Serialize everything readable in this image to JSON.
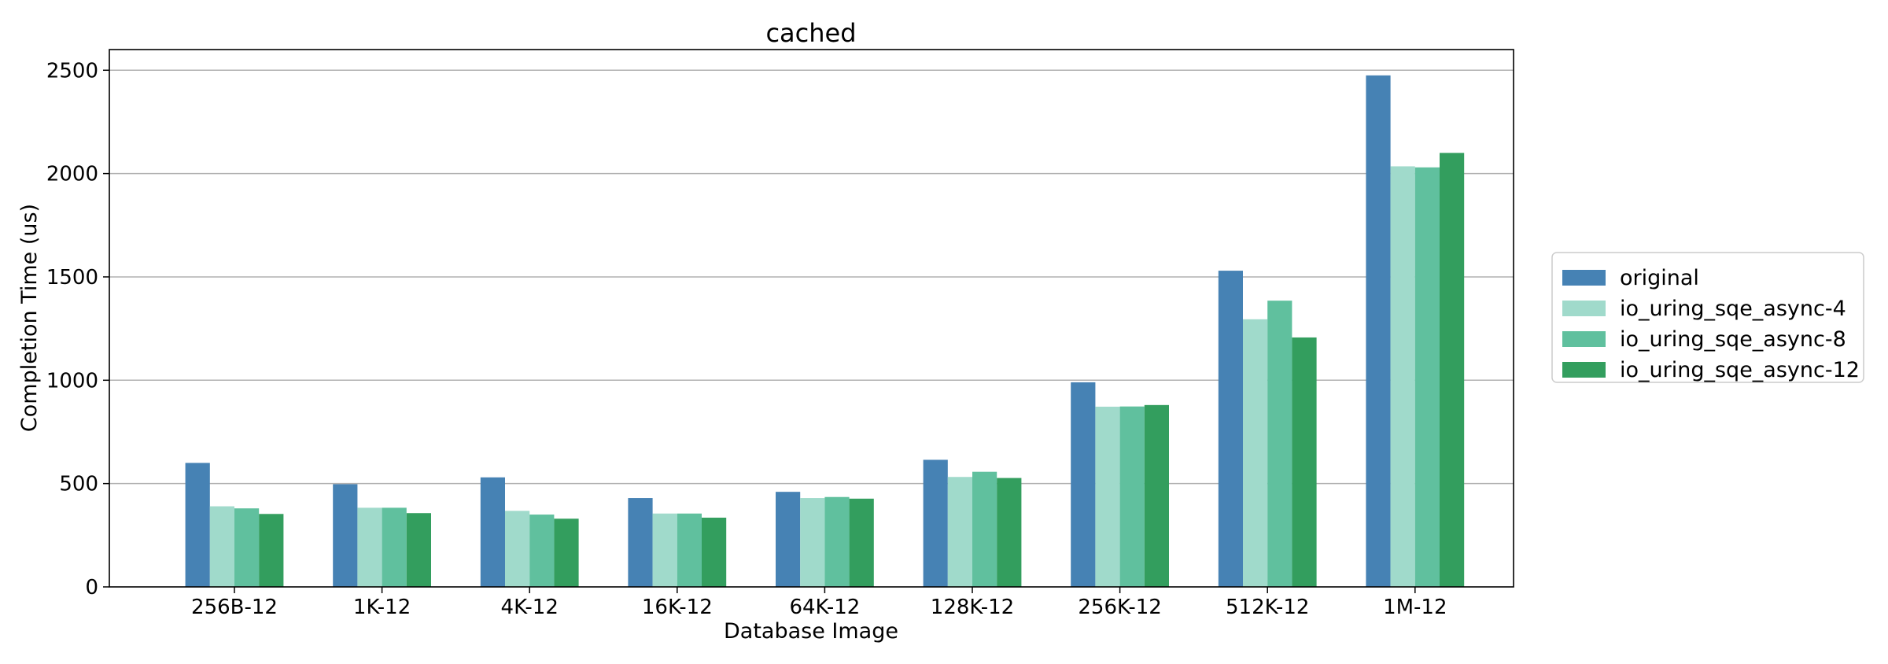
{
  "chart_data": {
    "type": "bar",
    "title": "cached",
    "xlabel": "Database Image",
    "ylabel": "Completion Time (us)",
    "categories": [
      "256B-12",
      "1K-12",
      "4K-12",
      "16K-12",
      "64K-12",
      "128K-12",
      "256K-12",
      "512K-12",
      "1M-12"
    ],
    "ylim": [
      0,
      2600
    ],
    "yticks": [
      0,
      500,
      1000,
      1500,
      2000,
      2500
    ],
    "grid": "horizontal",
    "legend_position": "right",
    "series": [
      {
        "name": "original",
        "color": "#4682b4",
        "values": [
          600,
          497,
          530,
          430,
          460,
          615,
          990,
          1530,
          2475
        ]
      },
      {
        "name": "io_uring_sqe_async-4",
        "color": "#a0dacb",
        "values": [
          390,
          383,
          368,
          355,
          430,
          532,
          872,
          1295,
          2035
        ]
      },
      {
        "name": "io_uring_sqe_async-8",
        "color": "#60c09e",
        "values": [
          380,
          383,
          350,
          355,
          435,
          557,
          873,
          1385,
          2030
        ]
      },
      {
        "name": "io_uring_sqe_async-12",
        "color": "#339e5e",
        "values": [
          353,
          357,
          330,
          335,
          427,
          527,
          880,
          1207,
          2100
        ]
      }
    ]
  }
}
